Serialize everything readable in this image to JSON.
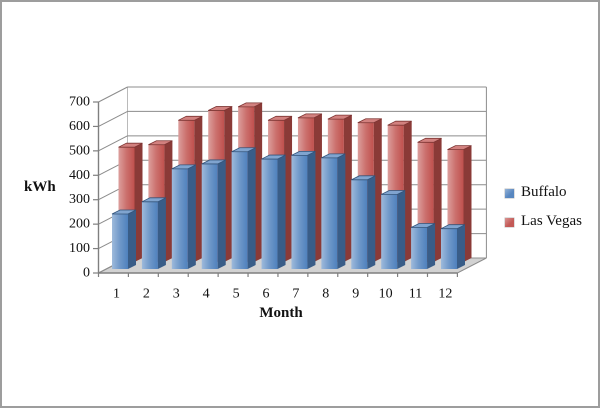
{
  "figure": {
    "background": "#ffffff",
    "border_color": "#9d9d9d"
  },
  "chart_data": {
    "type": "bar",
    "variant": "3d-clustered-column",
    "title": "",
    "xlabel": "Month",
    "ylabel": "kWh",
    "categories": [
      "1",
      "2",
      "3",
      "4",
      "5",
      "6",
      "7",
      "8",
      "9",
      "10",
      "11",
      "12"
    ],
    "series": [
      {
        "name": "Buffalo",
        "color": "#4f81bd",
        "values": [
          225,
          275,
          410,
          430,
          480,
          450,
          465,
          455,
          365,
          305,
          170,
          165
        ]
      },
      {
        "name": "Las Vegas",
        "color": "#c0504d",
        "values": [
          470,
          480,
          580,
          620,
          635,
          580,
          590,
          585,
          570,
          560,
          490,
          460
        ]
      }
    ],
    "ylim": [
      0,
      700
    ],
    "yticks": [
      0,
      100,
      200,
      300,
      400,
      500,
      600,
      700
    ],
    "grid": true,
    "legend_position": "right",
    "gridline_color": "#8c8c8c",
    "axis_color": "#7f7f7f",
    "floor_color": "#d2d2d2",
    "text_color": "#111111"
  }
}
